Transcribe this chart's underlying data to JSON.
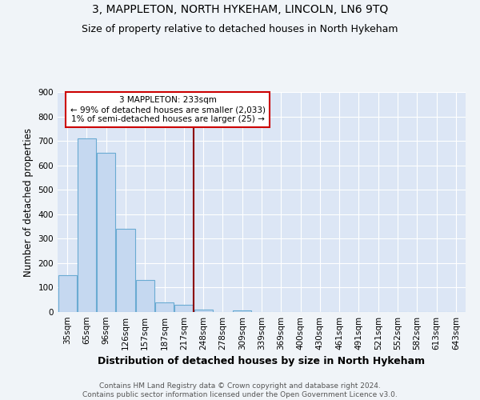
{
  "title": "3, MAPPLETON, NORTH HYKEHAM, LINCOLN, LN6 9TQ",
  "subtitle": "Size of property relative to detached houses in North Hykeham",
  "xlabel": "Distribution of detached houses by size in North Hykeham",
  "ylabel": "Number of detached properties",
  "bar_labels": [
    "35sqm",
    "65sqm",
    "96sqm",
    "126sqm",
    "157sqm",
    "187sqm",
    "217sqm",
    "248sqm",
    "278sqm",
    "309sqm",
    "339sqm",
    "369sqm",
    "400sqm",
    "430sqm",
    "461sqm",
    "491sqm",
    "521sqm",
    "552sqm",
    "582sqm",
    "613sqm",
    "643sqm"
  ],
  "bar_values": [
    150,
    710,
    650,
    340,
    130,
    40,
    30,
    10,
    0,
    8,
    0,
    0,
    0,
    0,
    0,
    0,
    0,
    0,
    0,
    0,
    0
  ],
  "bar_color": "#c5d8f0",
  "bar_edge_color": "#6aabd2",
  "background_color": "#dce6f5",
  "grid_color": "#ffffff",
  "vline_x": 6.5,
  "vline_color": "#8b0000",
  "ylim": [
    0,
    900
  ],
  "yticks": [
    0,
    100,
    200,
    300,
    400,
    500,
    600,
    700,
    800,
    900
  ],
  "annotation_text": "3 MAPPLETON: 233sqm\n← 99% of detached houses are smaller (2,033)\n1% of semi-detached houses are larger (25) →",
  "annotation_box_color": "#ffffff",
  "annotation_box_edge_color": "#cc0000",
  "footer": "Contains HM Land Registry data © Crown copyright and database right 2024.\nContains public sector information licensed under the Open Government Licence v3.0.",
  "title_fontsize": 10,
  "subtitle_fontsize": 9,
  "xlabel_fontsize": 9,
  "ylabel_fontsize": 8.5,
  "tick_fontsize": 7.5,
  "annotation_fontsize": 7.5,
  "footer_fontsize": 6.5
}
